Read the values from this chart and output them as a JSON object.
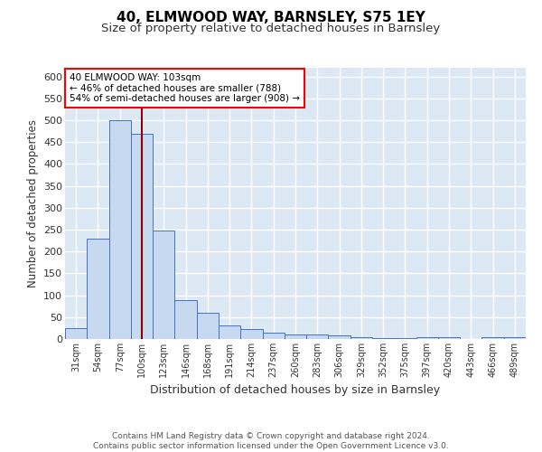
{
  "title": "40, ELMWOOD WAY, BARNSLEY, S75 1EY",
  "subtitle": "Size of property relative to detached houses in Barnsley",
  "xlabel": "Distribution of detached houses by size in Barnsley",
  "ylabel": "Number of detached properties",
  "categories": [
    "31sqm",
    "54sqm",
    "77sqm",
    "100sqm",
    "123sqm",
    "146sqm",
    "168sqm",
    "191sqm",
    "214sqm",
    "237sqm",
    "260sqm",
    "283sqm",
    "306sqm",
    "329sqm",
    "352sqm",
    "375sqm",
    "397sqm",
    "420sqm",
    "443sqm",
    "466sqm",
    "489sqm"
  ],
  "values": [
    25,
    230,
    500,
    470,
    248,
    88,
    60,
    30,
    22,
    14,
    11,
    10,
    8,
    4,
    3,
    3,
    4,
    5,
    0,
    5,
    5
  ],
  "bar_color": "#c6d9f0",
  "bar_edge_color": "#4472c4",
  "vline_x": 3,
  "vline_color": "#8b0000",
  "annotation_text": "40 ELMWOOD WAY: 103sqm\n← 46% of detached houses are smaller (788)\n54% of semi-detached houses are larger (908) →",
  "annotation_box_color": "white",
  "annotation_box_edge_color": "red",
  "ylim": [
    0,
    620
  ],
  "yticks": [
    0,
    50,
    100,
    150,
    200,
    250,
    300,
    350,
    400,
    450,
    500,
    550,
    600
  ],
  "bg_color": "#dde8f5",
  "grid_color": "white",
  "footer": "Contains HM Land Registry data © Crown copyright and database right 2024.\nContains public sector information licensed under the Open Government Licence v3.0.",
  "title_fontsize": 11,
  "subtitle_fontsize": 9.5
}
